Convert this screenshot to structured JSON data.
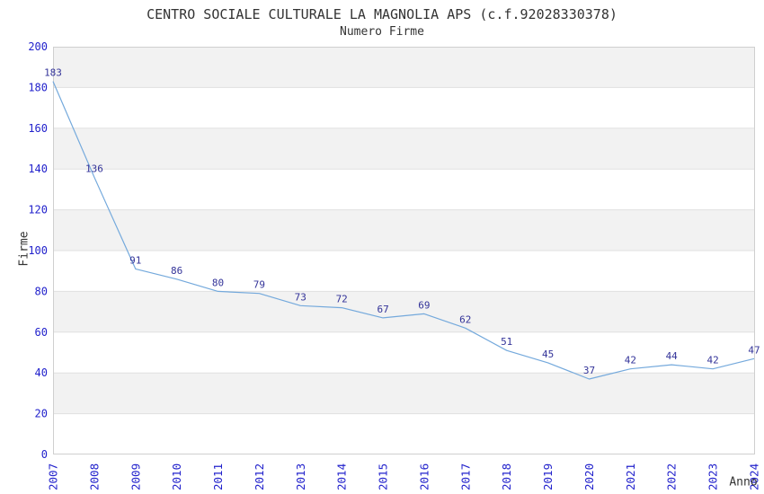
{
  "header": {
    "title": "CENTRO SOCIALE CULTURALE LA MAGNOLIA APS (c.f.92028330378)",
    "subtitle": "Numero Firme"
  },
  "chart_data": {
    "type": "line",
    "title": "CENTRO SOCIALE CULTURALE LA MAGNOLIA APS (c.f.92028330378)",
    "subtitle": "Numero Firme",
    "xlabel": "Anno",
    "ylabel": "Firme",
    "categories": [
      "2007",
      "2008",
      "2009",
      "2010",
      "2011",
      "2012",
      "2013",
      "2014",
      "2015",
      "2016",
      "2017",
      "2018",
      "2019",
      "2020",
      "2021",
      "2022",
      "2023",
      "2024"
    ],
    "values": [
      183,
      136,
      91,
      86,
      80,
      79,
      73,
      72,
      67,
      69,
      62,
      51,
      45,
      37,
      42,
      44,
      42,
      47
    ],
    "ylim": [
      0,
      200
    ],
    "ytick_step": 20,
    "grid": true,
    "legend": false,
    "band_fill": "alternating",
    "colors": {
      "line": "#74a9dc",
      "band": "#f2f2f2",
      "gridline": "#e0e0e0",
      "plot_border": "#cfcfcf",
      "tick_label": "#2222cc",
      "data_label": "#333399",
      "title_text": "#333333",
      "background": "#ffffff"
    }
  }
}
